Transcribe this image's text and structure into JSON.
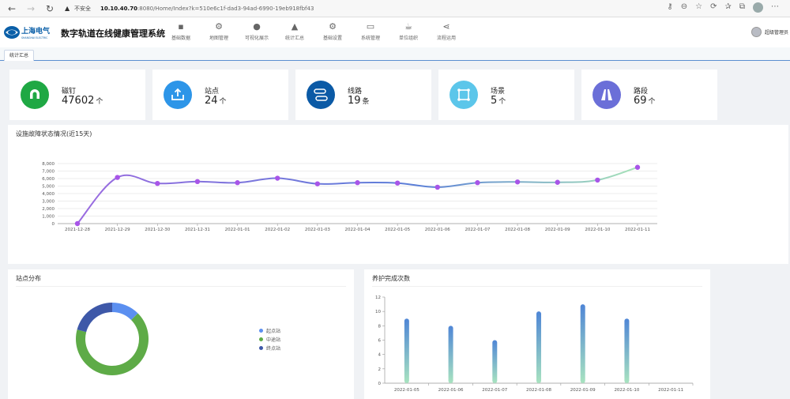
{
  "browser": {
    "insecure_label": "不安全",
    "url_host": "10.10.40.70",
    "url_rest": ":8080/Home/Index?k=510e6c1f-dad3-94ad-6990-19eb918fbf43"
  },
  "app": {
    "title": "数字轨道在线健康管理系统",
    "logo_text": "上海电气",
    "logo_subtext": "SHANGHAI ELECTRIC",
    "user_name": "超级管理员"
  },
  "nav": [
    {
      "label": "基础数据",
      "icon": "archive-icon",
      "glyph": "▪"
    },
    {
      "label": "地图管理",
      "icon": "gear-icon",
      "glyph": "⚙"
    },
    {
      "label": "可视化展示",
      "icon": "globe-icon",
      "glyph": "●"
    },
    {
      "label": "统计汇总",
      "icon": "area-chart-icon",
      "glyph": "▲"
    },
    {
      "label": "基础设置",
      "icon": "gears-icon",
      "glyph": "⚙"
    },
    {
      "label": "系统管理",
      "icon": "monitor-icon",
      "glyph": "▭"
    },
    {
      "label": "单位组织",
      "icon": "coffee-icon",
      "glyph": "☕"
    },
    {
      "label": "流程运用",
      "icon": "share-icon",
      "glyph": "⋖"
    }
  ],
  "tabs": [
    {
      "label": "统计汇总"
    }
  ],
  "stats": [
    {
      "label": "磁钉",
      "value": "47602",
      "unit": "个",
      "color": "#1fa844",
      "icon": "magnet-icon"
    },
    {
      "label": "站点",
      "value": "24",
      "unit": "个",
      "color": "#2d95e8",
      "icon": "upload-box-icon"
    },
    {
      "label": "线路",
      "value": "19",
      "unit": "条",
      "color": "#0b5aa6",
      "icon": "route-icon"
    },
    {
      "label": "场景",
      "value": "5",
      "unit": "个",
      "color": "#5cc6ea",
      "icon": "scene-frame-icon"
    },
    {
      "label": "路段",
      "value": "69",
      "unit": "个",
      "color": "#6b6fd8",
      "icon": "road-icon"
    }
  ],
  "panels": {
    "fault_title": "设施故障状态情况(近15天)",
    "station_title": "站点分布",
    "maintenance_title": "养护完成次数"
  },
  "chart_data": [
    {
      "type": "line",
      "title": "设施故障状态情况(近15天)",
      "categories": [
        "2021-12-28",
        "2021-12-29",
        "2021-12-30",
        "2021-12-31",
        "2022-01-01",
        "2022-01-02",
        "2022-01-03",
        "2022-01-04",
        "2022-01-05",
        "2022-01-06",
        "2022-01-07",
        "2022-01-08",
        "2022-01-09",
        "2022-01-10",
        "2022-01-11"
      ],
      "values": [
        0,
        6150,
        5350,
        5600,
        5450,
        6050,
        5300,
        5450,
        5400,
        4850,
        5450,
        5550,
        5500,
        5800,
        7500
      ],
      "ylim": [
        0,
        8000
      ],
      "yticks": [
        "0",
        "1,000",
        "2,000",
        "3,000",
        "4,000",
        "5,000",
        "6,000",
        "7,000",
        "8,000"
      ],
      "grid": true,
      "colors": {
        "start": "#9b6be0",
        "mid": "#5b7fd8",
        "end": "#a7e3b8",
        "point": "#a855e8"
      }
    },
    {
      "type": "pie",
      "title": "站点分布",
      "labels": [
        "起点站",
        "中途站",
        "终点站"
      ],
      "values": [
        3,
        16,
        5
      ],
      "colors": [
        "#5b8ff0",
        "#5eab47",
        "#3e58a8"
      ],
      "legend": "right"
    },
    {
      "type": "bar",
      "title": "养护完成次数",
      "categories": [
        "2022-01-05",
        "2022-01-06",
        "2022-01-07",
        "2022-01-08",
        "2022-01-09",
        "2022-01-10",
        "2022-01-11"
      ],
      "values": [
        9,
        8,
        6,
        10,
        11,
        9,
        0
      ],
      "ylim": [
        0,
        12
      ],
      "yticks": [
        "0",
        "2",
        "4",
        "6",
        "8",
        "10",
        "12"
      ],
      "colors": {
        "top": "#4f86d6",
        "bottom": "#a8e3c0"
      }
    }
  ]
}
